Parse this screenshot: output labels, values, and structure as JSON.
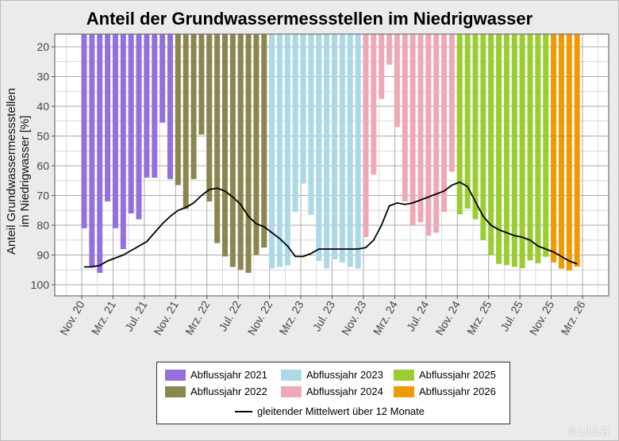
{
  "chart_data": {
    "type": "bar",
    "title": "Anteil der Grundwassermessstellen im Niedrigwasser",
    "ylabel": [
      "Anteil Grundwassermessstellen",
      "im Niedrigwasser [%]"
    ],
    "ylim": [
      15.7,
      103.7
    ],
    "y_inverted": true,
    "y_ticks": [
      20,
      30,
      40,
      50,
      60,
      70,
      80,
      90,
      100
    ],
    "x_tick_labels": [
      "Nov. 20",
      "Mrz. 21",
      "Jul. 21",
      "Nov. 21",
      "Mrz. 22",
      "Jul. 22",
      "Nov. 22",
      "Mrz. 23",
      "Jul. 23",
      "Nov. 23",
      "Mrz. 24",
      "Jul. 24",
      "Nov. 24",
      "Mrz. 25",
      "Jul. 25",
      "Nov. 25",
      "Mrz. 26"
    ],
    "grid": true,
    "legend_position": "bottom",
    "series": [
      {
        "name": "Abflussjahr 2021",
        "color": "#9370db",
        "start": "2020-11",
        "values": [
          81,
          94,
          96,
          72,
          81,
          88,
          76,
          78,
          64,
          64,
          45.5,
          64.5
        ]
      },
      {
        "name": "Abflussjahr 2022",
        "color": "#8b864e",
        "start": "2021-11",
        "values": [
          66.5,
          74.5,
          64.5,
          49.5,
          72,
          86,
          90.5,
          94,
          95,
          96,
          90,
          87.5
        ]
      },
      {
        "name": "Abflussjahr 2023",
        "color": "#add8e6",
        "start": "2022-11",
        "values": [
          94.5,
          94,
          93.5,
          75.5,
          66,
          76.5,
          92,
          94.5,
          91.5,
          92.5,
          94,
          94.5
        ]
      },
      {
        "name": "Abflussjahr 2024",
        "color": "#eea9b8",
        "start": "2023-11",
        "values": [
          84,
          63,
          37.5,
          26,
          47,
          72,
          80,
          79,
          83.5,
          82.5,
          75.5,
          62
        ]
      },
      {
        "name": "Abflussjahr 2025",
        "color": "#9acd32",
        "start": "2024-11",
        "values": [
          76.3,
          74.4,
          78,
          85,
          90,
          93,
          93.4,
          94,
          94.4,
          91.8,
          92.8,
          90.6
        ]
      },
      {
        "name": "Abflussjahr 2026",
        "color": "#ee9a00",
        "start": "2025-11",
        "values": [
          92.5,
          94.6,
          95.2,
          93.9
        ]
      }
    ],
    "line": {
      "name": "gleitender Mittelwert über 12 Monate",
      "color": "#000000",
      "values": [
        94,
        94,
        93.5,
        92,
        91,
        90,
        88.5,
        87,
        85.5,
        82.5,
        79.5,
        77,
        75,
        74,
        72.5,
        70,
        68,
        67.5,
        68.5,
        70.5,
        73,
        77,
        79.5,
        80.5,
        82.5,
        84.5,
        87,
        90.5,
        90.5,
        89.5,
        88,
        88,
        88,
        88,
        88,
        88,
        87.5,
        85,
        80,
        73.5,
        72.5,
        73,
        72.5,
        71.5,
        70.5,
        69.5,
        68.5,
        66.5,
        65.5,
        67,
        72,
        77,
        80,
        81.5,
        82.5,
        83.5,
        84,
        85,
        87,
        88,
        89,
        90.5,
        92,
        93
      ]
    }
  },
  "copyright": "© LfULG"
}
